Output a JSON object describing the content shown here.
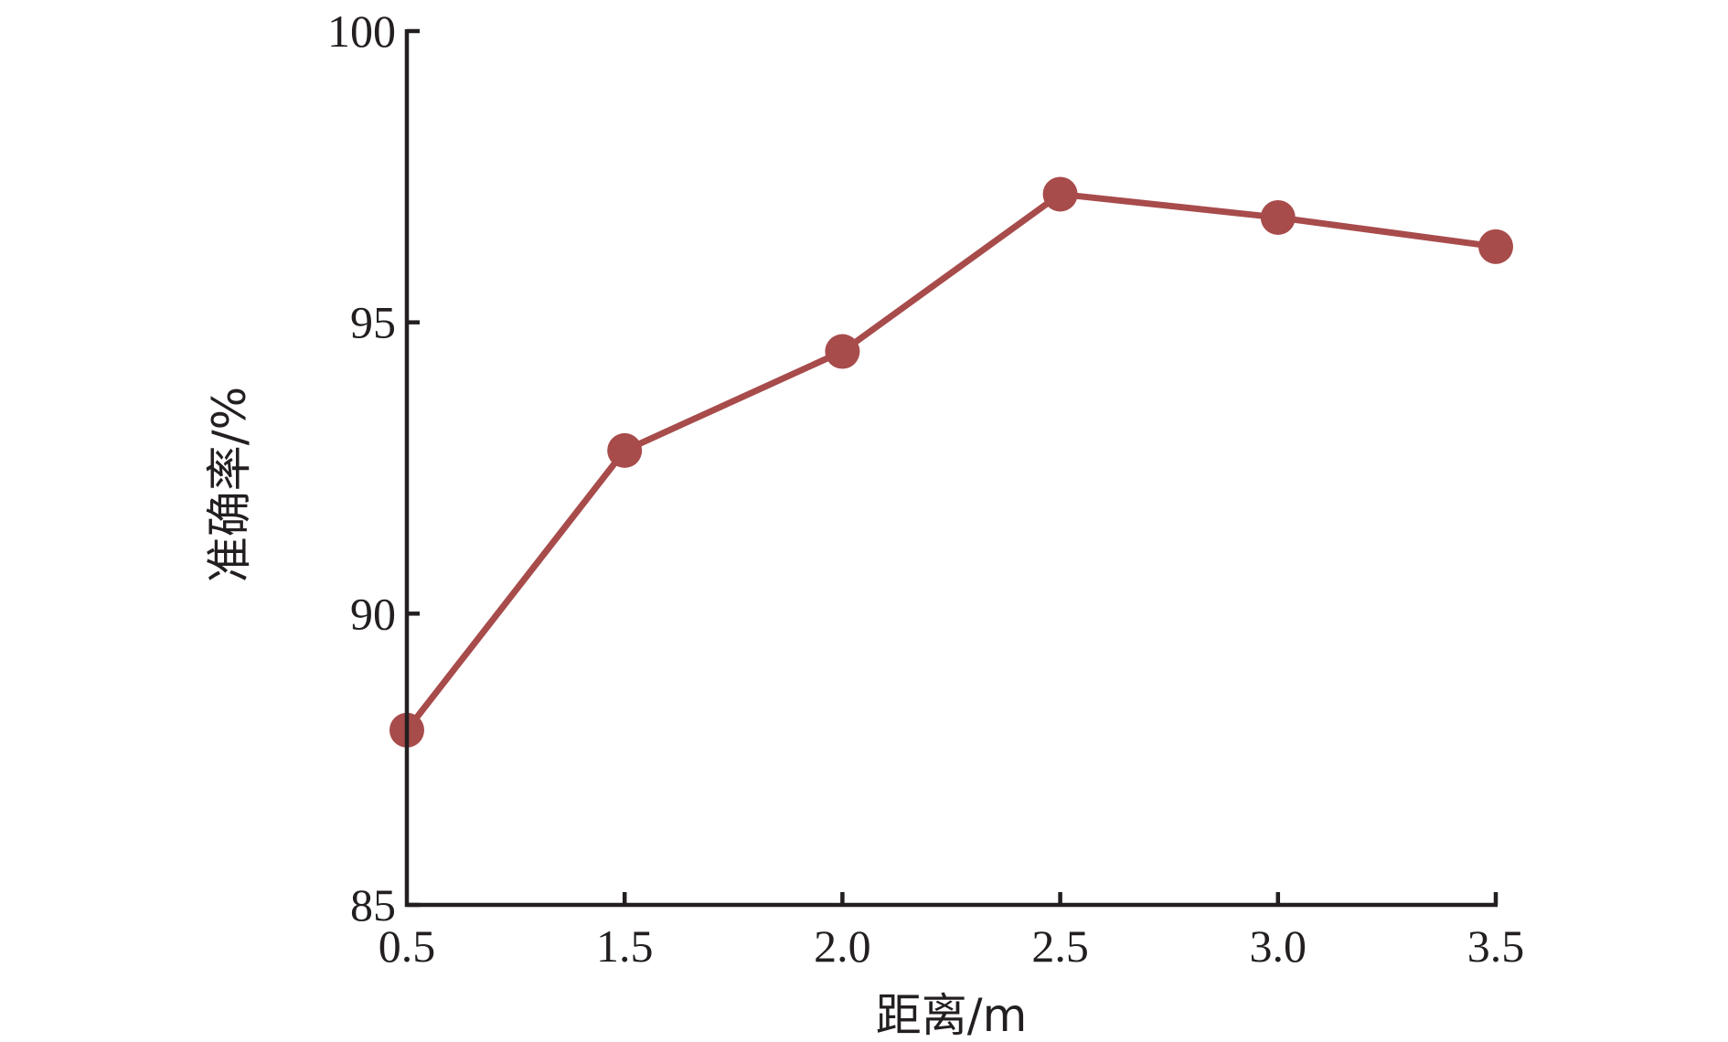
{
  "chart_data": {
    "type": "line",
    "xlabel": "距离/m",
    "ylabel": "准确率/%",
    "categories": [
      "0.5",
      "1.5",
      "2.0",
      "2.5",
      "3.0",
      "3.5"
    ],
    "ylim": [
      85,
      100
    ],
    "yticks": [
      85,
      90,
      95,
      100
    ],
    "grid": false,
    "series": [
      {
        "values": [
          88.0,
          92.8,
          94.5,
          97.2,
          96.8,
          96.3
        ],
        "color": "#a84b4b"
      }
    ]
  }
}
